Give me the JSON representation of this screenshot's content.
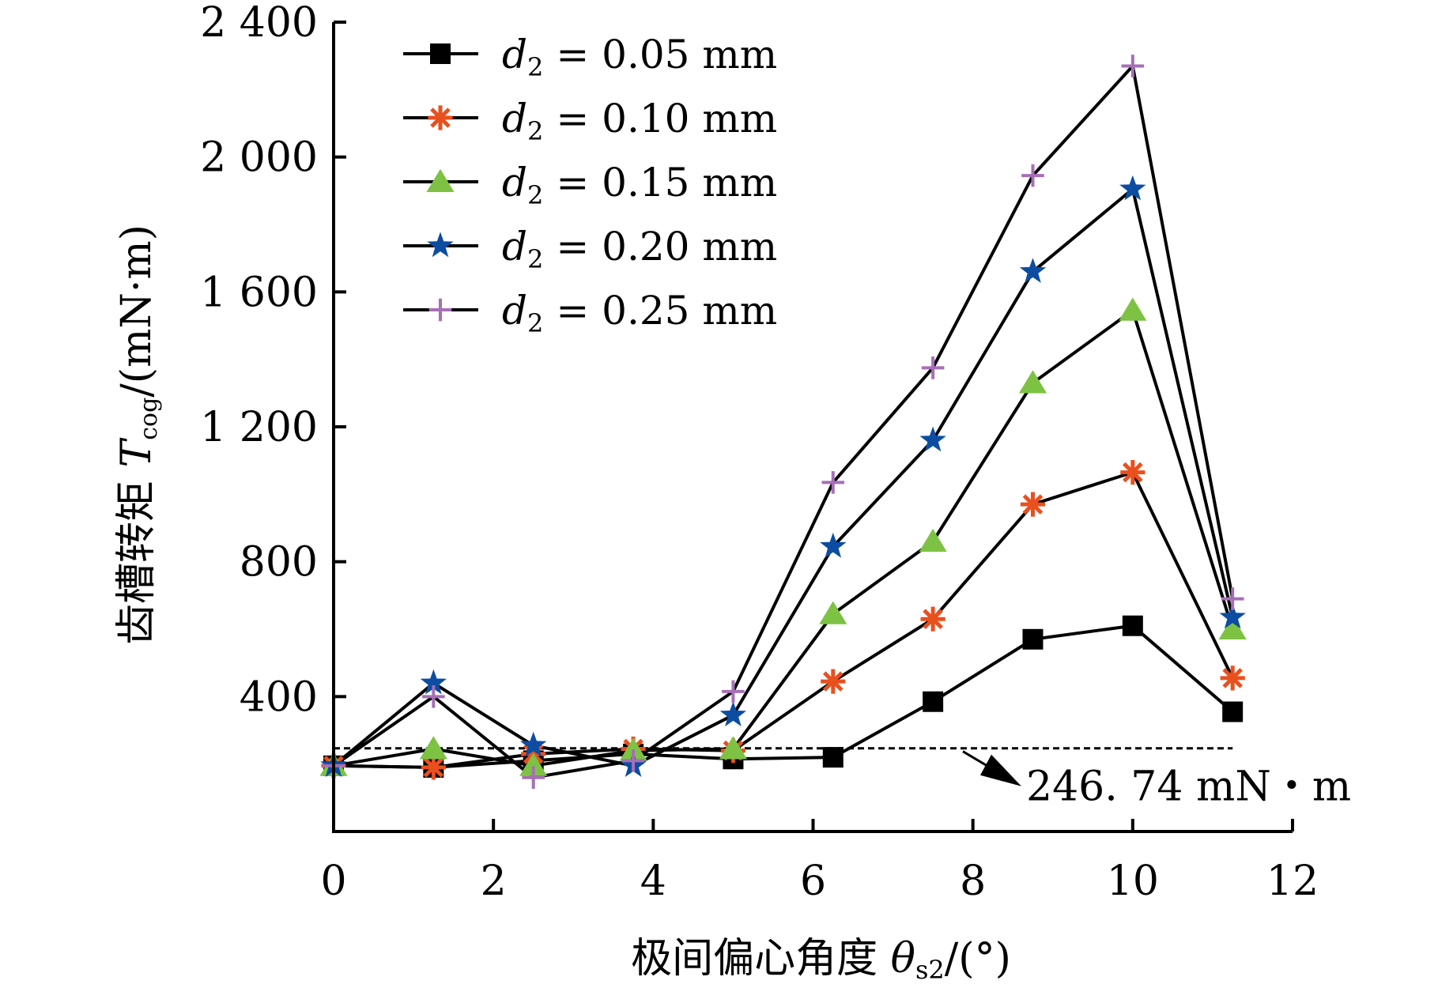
{
  "chart_data": {
    "type": "line",
    "xlabel": "极间偏心角度 θs2/(°)",
    "xlabel_parts": {
      "prefix": "极间偏心角度 ",
      "symbol": "θ",
      "subscript": "s2",
      "suffix": "/(°)"
    },
    "ylabel": "齿槽转矩 Tcog/(mN·m)",
    "ylabel_parts": {
      "prefix": "齿槽转矩 ",
      "symbol": "T",
      "subscript": "cog",
      "suffix": "/(mN·m)"
    },
    "xlim": [
      0,
      12
    ],
    "ylim": [
      0,
      2400
    ],
    "x_ticks": [
      0,
      2,
      4,
      6,
      8,
      10,
      12
    ],
    "x_tick_labels": [
      "0",
      "2",
      "4",
      "6",
      "8",
      "10",
      "12"
    ],
    "y_ticks": [
      400,
      800,
      1200,
      1600,
      2000,
      2400
    ],
    "y_tick_labels": [
      "400",
      "800",
      "1 200",
      "1 600",
      "2 000",
      "2 400"
    ],
    "grid": false,
    "legend_position": "top-left",
    "x": [
      0,
      1.25,
      2.5,
      3.75,
      5,
      6.25,
      7.5,
      8.75,
      10,
      11.25
    ],
    "series": [
      {
        "name": "d2 = 0.05 mm",
        "label_symbol": "d",
        "label_sub": "2",
        "label_rest": "= 0.05 mm",
        "marker": "square",
        "color": "#000000",
        "values": [
          195,
          190,
          210,
          230,
          215,
          220,
          385,
          570,
          610,
          355
        ]
      },
      {
        "name": "d2 = 0.10 mm",
        "label_symbol": "d",
        "label_sub": "2",
        "label_rest": "= 0.10 mm",
        "marker": "asterisk",
        "color": "#e8501e",
        "values": [
          195,
          190,
          230,
          245,
          240,
          445,
          630,
          970,
          1065,
          455
        ]
      },
      {
        "name": "d2 = 0.15 mm",
        "label_symbol": "d",
        "label_sub": "2",
        "label_rest": "= 0.15 mm",
        "marker": "triangle",
        "color": "#7dc243",
        "values": [
          195,
          245,
          195,
          240,
          245,
          645,
          860,
          1330,
          1545,
          600
        ]
      },
      {
        "name": "d2 = 0.20 mm",
        "label_symbol": "d",
        "label_sub": "2",
        "label_rest": "= 0.20 mm",
        "marker": "star",
        "color": "#0c4da2",
        "values": [
          195,
          440,
          255,
          195,
          345,
          845,
          1160,
          1660,
          1905,
          635
        ]
      },
      {
        "name": "d2 = 0.25 mm",
        "label_symbol": "d",
        "label_sub": "2",
        "label_rest": "= 0.25 mm",
        "marker": "plus",
        "color": "#a66fb5",
        "values": [
          195,
          400,
          160,
          210,
          415,
          1035,
          1375,
          1945,
          2270,
          690
        ]
      }
    ],
    "reference_line": {
      "value": 246.74,
      "x_range": [
        0,
        11.25
      ],
      "label": "246. 74 mN・m"
    }
  }
}
